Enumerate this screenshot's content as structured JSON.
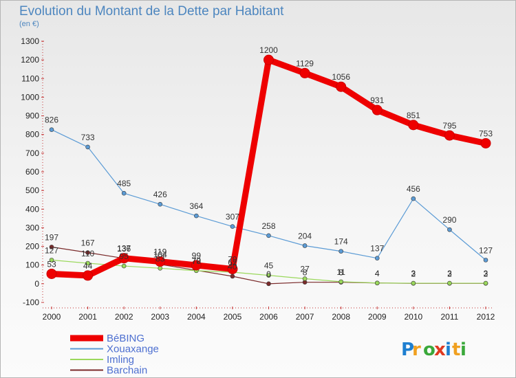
{
  "title": "Evolution du Montant de la Dette par Habitant",
  "subtitle": "(en €)",
  "brand": [
    "P",
    "r",
    "o",
    "x",
    "i",
    "t",
    "i"
  ],
  "brand_colors": [
    "#1e7fd0",
    "#f0a020",
    "#3aa83a",
    "#e03a20",
    "#1e7fd0",
    "#f0a020",
    "#3aa83a"
  ],
  "chart_data": {
    "type": "line",
    "title": "Evolution du Montant de la Dette par Habitant",
    "subtitle": "(en €)",
    "x": [
      "2000",
      "2001",
      "2002",
      "2003",
      "2004",
      "2005",
      "2006",
      "2007",
      "2008",
      "2009",
      "2010",
      "2011",
      "2012"
    ],
    "ylim": [
      -100,
      1300
    ],
    "yticks": [
      "-100",
      "0",
      "100",
      "200",
      "300",
      "400",
      "500",
      "600",
      "700",
      "800",
      "900",
      "1000",
      "1100",
      "1200",
      "1300"
    ],
    "grid": false,
    "legend_position": "bottom-left",
    "series": [
      {
        "name": "BéBING",
        "color": "#ee0000",
        "values": [
          53,
          44,
          137,
          119,
          99,
          79,
          1200,
          1129,
          1056,
          931,
          851,
          795,
          753
        ],
        "labels": [
          "53",
          "44",
          "137",
          "119",
          "99",
          "79",
          "1200",
          "1129",
          "1056",
          "931",
          "851",
          "795",
          "753"
        ]
      },
      {
        "name": "Xouaxange",
        "color": "#5b9bd5",
        "values": [
          826,
          733,
          485,
          426,
          364,
          307,
          258,
          204,
          174,
          137,
          456,
          290,
          127
        ],
        "labels": [
          "826",
          "733",
          "485",
          "426",
          "364",
          "307",
          "258",
          "204",
          "174",
          "137",
          "456",
          "290",
          "127"
        ]
      },
      {
        "name": "Imling",
        "color": "#9ad85b",
        "values": [
          127,
          110,
          95,
          83,
          70,
          62,
          45,
          27,
          11,
          4,
          3,
          3,
          3
        ],
        "labels": [
          "127",
          "110",
          "95",
          "83",
          "70",
          "62",
          "45",
          "27",
          "11",
          "4",
          "3",
          "3",
          "3"
        ]
      },
      {
        "name": "Barchain",
        "color": "#7a2a2a",
        "values": [
          197,
          167,
          136,
          104,
          72,
          40,
          0,
          8,
          8,
          4,
          2,
          2,
          2
        ],
        "labels": [
          "197",
          "167",
          "136",
          "104",
          "72",
          "40",
          "0",
          "8",
          "8",
          "4",
          "2",
          "2",
          "2"
        ]
      }
    ]
  }
}
